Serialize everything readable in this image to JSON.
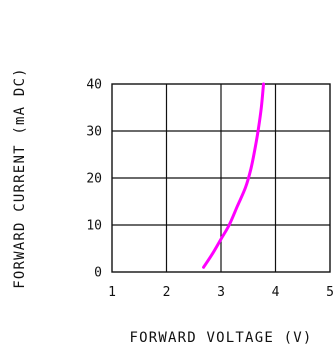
{
  "chart_data": {
    "type": "line",
    "xlabel": "FORWARD VOLTAGE (V)",
    "ylabel": "FORWARD CURRENT (mA DC)",
    "xlim": [
      1,
      5
    ],
    "ylim": [
      0,
      40
    ],
    "x_ticks": [
      "1",
      "2",
      "3",
      "4",
      "5"
    ],
    "y_ticks": [
      "0",
      "10",
      "20",
      "30",
      "40"
    ],
    "grid": true,
    "series": [
      {
        "color": "#ff00ff",
        "points": [
          {
            "x": 2.68,
            "y": 1
          },
          {
            "x": 2.85,
            "y": 4
          },
          {
            "x": 3.0,
            "y": 7
          },
          {
            "x": 3.15,
            "y": 10
          },
          {
            "x": 3.3,
            "y": 14
          },
          {
            "x": 3.45,
            "y": 18
          },
          {
            "x": 3.55,
            "y": 22
          },
          {
            "x": 3.62,
            "y": 26
          },
          {
            "x": 3.68,
            "y": 30
          },
          {
            "x": 3.74,
            "y": 35
          },
          {
            "x": 3.78,
            "y": 40
          }
        ]
      }
    ]
  }
}
